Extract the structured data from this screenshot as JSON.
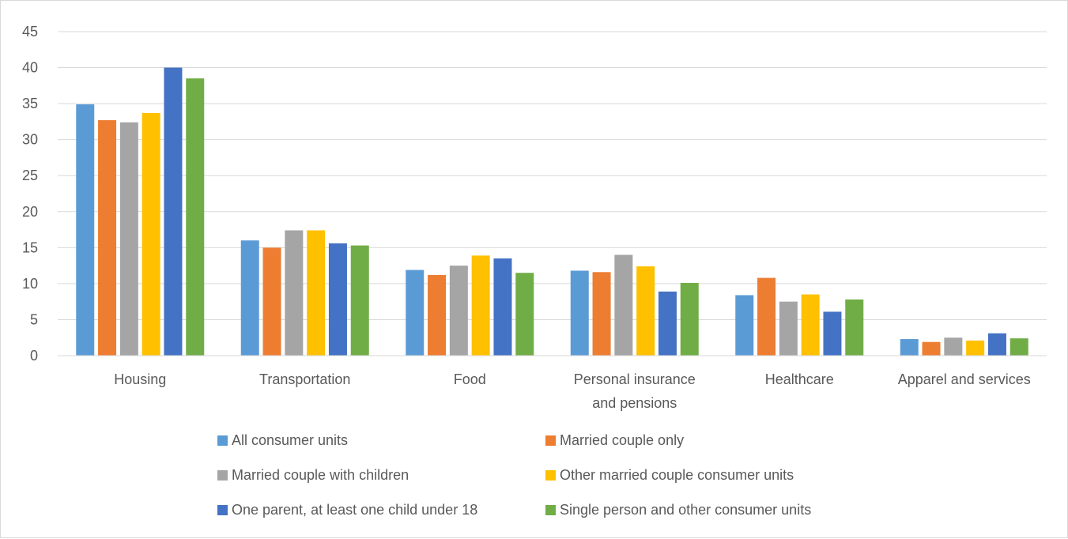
{
  "chart_data": {
    "type": "bar",
    "title": "",
    "xlabel": "",
    "ylabel": "",
    "ylim": [
      0,
      45
    ],
    "yticks": [
      0,
      5,
      10,
      15,
      20,
      25,
      30,
      35,
      40,
      45
    ],
    "grid": true,
    "legend_position": "bottom",
    "categories": [
      [
        "Housing"
      ],
      [
        "Transportation"
      ],
      [
        "Food"
      ],
      [
        "Personal insurance",
        "and pensions"
      ],
      [
        "Healthcare"
      ],
      [
        "Apparel and services"
      ]
    ],
    "series": [
      {
        "name": "All consumer units",
        "color": "#5b9bd5",
        "values": [
          34.9,
          16.0,
          11.9,
          11.8,
          8.4,
          2.3
        ]
      },
      {
        "name": "Married couple only",
        "color": "#ed7d31",
        "values": [
          32.7,
          15.0,
          11.2,
          11.6,
          10.8,
          1.9
        ]
      },
      {
        "name": "Married couple with children",
        "color": "#a5a5a5",
        "values": [
          32.4,
          17.4,
          12.5,
          14.0,
          7.5,
          2.5
        ]
      },
      {
        "name": "Other married couple consumer units",
        "color": "#ffc000",
        "values": [
          33.7,
          17.4,
          13.9,
          12.4,
          8.5,
          2.1
        ]
      },
      {
        "name": "One parent, at least one child under 18",
        "color": "#4472c4",
        "values": [
          40.0,
          15.6,
          13.5,
          8.9,
          6.1,
          3.1
        ]
      },
      {
        "name": "Single person and other consumer units",
        "color": "#70ad47",
        "values": [
          38.5,
          15.3,
          11.5,
          10.1,
          7.8,
          2.4
        ]
      }
    ]
  }
}
